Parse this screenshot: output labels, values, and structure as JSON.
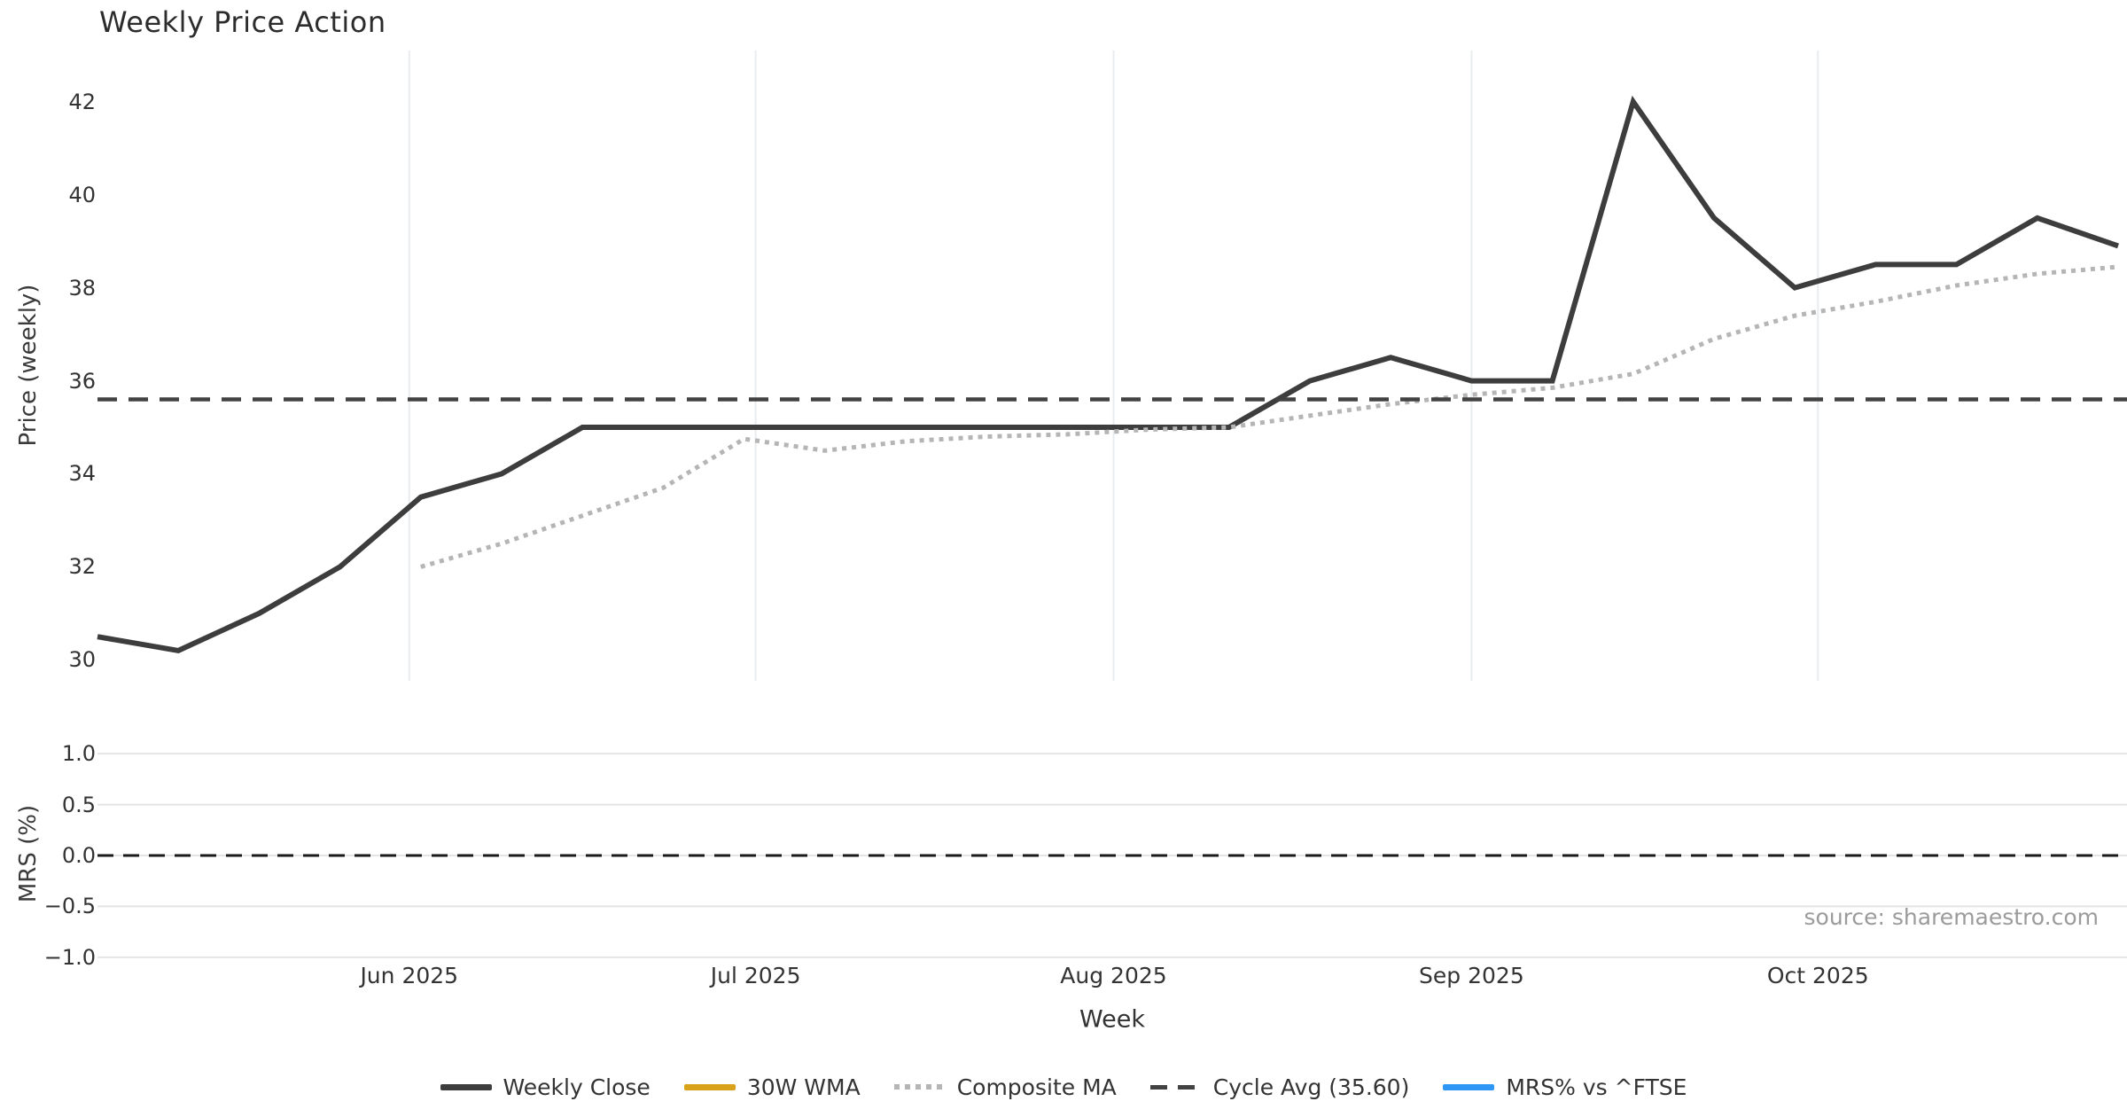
{
  "chart_data": {
    "type": "line",
    "title": "Weekly Price Action",
    "xlabel": "Week",
    "source": "source: sharemaestro.com",
    "weeks": [
      "2025-05-05",
      "2025-05-12",
      "2025-05-19",
      "2025-05-26",
      "2025-06-02",
      "2025-06-09",
      "2025-06-16",
      "2025-06-23",
      "2025-06-30",
      "2025-07-07",
      "2025-07-14",
      "2025-07-21",
      "2025-07-28",
      "2025-08-04",
      "2025-08-11",
      "2025-08-18",
      "2025-08-25",
      "2025-09-01",
      "2025-09-08",
      "2025-09-15",
      "2025-09-22",
      "2025-09-29",
      "2025-10-06",
      "2025-10-13",
      "2025-10-20",
      "2025-10-27"
    ],
    "xticks": [
      {
        "label": "Jun 2025",
        "date": "2025-06-01"
      },
      {
        "label": "Jul 2025",
        "date": "2025-07-01"
      },
      {
        "label": "Aug 2025",
        "date": "2025-08-01"
      },
      {
        "label": "Sep 2025",
        "date": "2025-09-01"
      },
      {
        "label": "Oct 2025",
        "date": "2025-10-01"
      }
    ],
    "panels": [
      {
        "ylabel": "Price (weekly)",
        "ylim": [
          29.55,
          43.1
        ],
        "yticks": [
          {
            "label": "42",
            "v": 42
          },
          {
            "label": "40",
            "v": 40
          },
          {
            "label": "38",
            "v": 38
          },
          {
            "label": "36",
            "v": 36
          },
          {
            "label": "34",
            "v": 34
          },
          {
            "label": "32",
            "v": 32
          },
          {
            "label": "30",
            "v": 30
          }
        ],
        "grid": "vertical-months"
      },
      {
        "ylabel": "MRS (%)",
        "ylim": [
          -1.045,
          1.045
        ],
        "yticks": [
          {
            "label": "1.0",
            "v": 1.0
          },
          {
            "label": "0.5",
            "v": 0.5
          },
          {
            "label": "0.0",
            "v": 0.0
          },
          {
            "label": "−0.5",
            "v": -0.5
          },
          {
            "label": "−1.0",
            "v": -1.0
          }
        ],
        "grid": "horizontal"
      }
    ],
    "series": [
      {
        "name": "Weekly Close",
        "panel": 0,
        "color": "#3d3d3d",
        "style": "solid",
        "width": 6,
        "values": [
          30.5,
          30.2,
          31.0,
          32.0,
          33.5,
          34.0,
          35.0,
          35.0,
          35.0,
          35.0,
          35.0,
          35.0,
          35.0,
          35.0,
          35.0,
          36.0,
          36.5,
          36.0,
          36.0,
          42.0,
          39.5,
          38.0,
          38.5,
          38.5,
          39.5,
          38.9
        ]
      },
      {
        "name": "30W WMA",
        "panel": 0,
        "color": "#d9a21b",
        "style": "solid",
        "width": 6,
        "values": [
          null,
          null,
          null,
          null,
          null,
          null,
          null,
          null,
          null,
          null,
          null,
          null,
          null,
          null,
          null,
          null,
          null,
          null,
          null,
          null,
          null,
          null,
          null,
          null,
          null,
          null
        ]
      },
      {
        "name": "Composite MA",
        "panel": 0,
        "color": "#b5b5b5",
        "style": "dotted",
        "width": 5,
        "values": [
          null,
          null,
          null,
          null,
          32.0,
          32.5,
          33.1,
          33.7,
          34.75,
          34.5,
          34.7,
          34.8,
          34.85,
          34.95,
          35.0,
          35.25,
          35.5,
          35.7,
          35.85,
          36.15,
          36.9,
          37.4,
          37.7,
          38.05,
          38.3,
          38.45
        ]
      },
      {
        "name": "Cycle Avg (35.60)",
        "panel": 0,
        "color": "#424242",
        "style": "dashed",
        "width": 4.5,
        "hline": 35.6
      },
      {
        "name": "MRS% vs ^FTSE",
        "panel": 1,
        "color": "#2e96f5",
        "style": "solid",
        "width": 5,
        "values": [
          null,
          null,
          null,
          null,
          null,
          null,
          null,
          null,
          null,
          null,
          null,
          null,
          null,
          null,
          null,
          null,
          null,
          null,
          null,
          null,
          null,
          null,
          null,
          null,
          null,
          null
        ]
      }
    ],
    "zero_line": {
      "panel": 1,
      "v": 0.0,
      "color": "#1a1a1a",
      "style": "dashed",
      "width": 3
    },
    "legend": [
      {
        "label": "Weekly Close",
        "swatch": "solid",
        "color": "#3d3d3d"
      },
      {
        "label": "30W WMA",
        "swatch": "solid",
        "color": "#d9a21b"
      },
      {
        "label": "Composite MA",
        "swatch": "dotted",
        "color": "#b5b5b5"
      },
      {
        "label": "Cycle Avg (35.60)",
        "swatch": "dashed",
        "color": "#424242"
      },
      {
        "label": "MRS% vs ^FTSE",
        "swatch": "solid",
        "color": "#2e96f5"
      }
    ],
    "colors": {
      "grid_vertical": "#e9ecef",
      "grid_horizontal": "#e4e4e4",
      "tick_text": "#333333",
      "title_text": "#2c2c2c",
      "source_text": "#9b9b9b"
    }
  }
}
